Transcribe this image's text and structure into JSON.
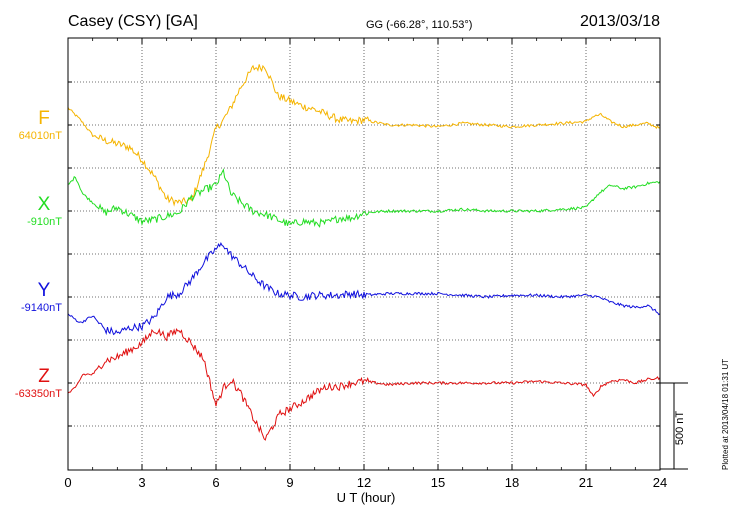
{
  "header": {
    "title": "Casey (CSY)  [GA]",
    "coords": "GG (-66.28°, 110.53°)",
    "date": "2013/03/18",
    "plotted": "Plotted at 2013/04/18 01:31  UT"
  },
  "chart_data": {
    "type": "line",
    "xlabel": "U T (hour)",
    "xlim": [
      0,
      24
    ],
    "x_ticks": [
      "0",
      "3",
      "6",
      "9",
      "12",
      "15",
      "18",
      "21",
      "24"
    ],
    "grid": true,
    "scale_bar": {
      "label": "500 nT",
      "value_nT": 500
    },
    "units_per_panel_nT": 500,
    "series": [
      {
        "name": "F",
        "baseline_label": "64010nT",
        "baseline_nT": 64010,
        "color": "#f5b400",
        "x": [
          0,
          0.5,
          1,
          1.5,
          2,
          2.5,
          3,
          3.5,
          4,
          4.5,
          5,
          5.5,
          5.8,
          6,
          6.3,
          6.6,
          7,
          7.5,
          8,
          8.5,
          9,
          9.5,
          10,
          10.5,
          11,
          11.5,
          12,
          13,
          14,
          15,
          16,
          17,
          18,
          19,
          20,
          21,
          21.3,
          21.6,
          22,
          22.5,
          23,
          23.5,
          24
        ],
        "y": [
          100,
          30,
          -60,
          -90,
          -110,
          -130,
          -200,
          -300,
          -430,
          -450,
          -440,
          -250,
          -120,
          -20,
          30,
          100,
          220,
          330,
          340,
          170,
          140,
          110,
          90,
          60,
          30,
          20,
          30,
          0,
          0,
          -10,
          10,
          0,
          -10,
          0,
          10,
          20,
          50,
          60,
          20,
          -10,
          0,
          10,
          -20
        ]
      },
      {
        "name": "X",
        "baseline_label": "-910nT",
        "baseline_nT": -910,
        "color": "#22dd22",
        "x": [
          0,
          0.3,
          0.6,
          1,
          1.5,
          2,
          2.5,
          3,
          3.5,
          4,
          4.5,
          5,
          5.5,
          6,
          6.3,
          6.6,
          7,
          7.5,
          8,
          8.5,
          9,
          9.5,
          10,
          10.5,
          11,
          11.5,
          12,
          13,
          14,
          15,
          16,
          17,
          18,
          19,
          20,
          21,
          21.5,
          22,
          22.5,
          23,
          23.5,
          24
        ],
        "y": [
          150,
          200,
          100,
          50,
          -10,
          20,
          -20,
          -60,
          -50,
          -30,
          -10,
          80,
          120,
          150,
          230,
          100,
          50,
          0,
          -20,
          -50,
          -80,
          -60,
          -70,
          -70,
          -40,
          -40,
          -10,
          0,
          0,
          0,
          10,
          0,
          0,
          0,
          10,
          20,
          100,
          150,
          130,
          140,
          160,
          170
        ]
      },
      {
        "name": "Y",
        "baseline_label": "-9140nT",
        "baseline_nT": -9140,
        "color": "#1010dd",
        "x": [
          0,
          0.5,
          1,
          1.5,
          2,
          2.5,
          3,
          3.5,
          4,
          4.5,
          5,
          5.5,
          6,
          6.3,
          6.5,
          7,
          7.5,
          8,
          8.5,
          9,
          9.5,
          10,
          10.5,
          11,
          11.5,
          12,
          13,
          14,
          15,
          16,
          17,
          18,
          19,
          20,
          21,
          21.5,
          22,
          22.5,
          23,
          23.5,
          24
        ],
        "y": [
          -100,
          -150,
          -110,
          -190,
          -210,
          -180,
          -170,
          -120,
          0,
          20,
          100,
          200,
          280,
          310,
          260,
          190,
          120,
          60,
          20,
          10,
          0,
          10,
          10,
          10,
          20,
          10,
          20,
          20,
          20,
          10,
          0,
          10,
          10,
          0,
          10,
          0,
          -30,
          -50,
          -60,
          -50,
          -100
        ]
      },
      {
        "name": "Z",
        "baseline_label": "-63350nT",
        "baseline_nT": -63350,
        "color": "#e01010",
        "x": [
          0,
          0.3,
          0.6,
          1,
          1.5,
          2,
          2.5,
          3,
          3.5,
          4,
          4.5,
          5,
          5.5,
          6,
          6.3,
          6.6,
          7,
          7.5,
          8,
          8.3,
          8.6,
          9,
          9.5,
          10,
          10.5,
          11,
          11.5,
          12,
          13,
          14,
          15,
          16,
          17,
          18,
          19,
          20,
          21,
          21.3,
          21.6,
          22,
          22.5,
          23,
          23.5,
          24
        ],
        "y": [
          -60,
          -30,
          50,
          50,
          130,
          150,
          190,
          230,
          310,
          270,
          310,
          230,
          140,
          -130,
          -30,
          20,
          -60,
          -200,
          -330,
          -250,
          -180,
          -150,
          -110,
          -60,
          -20,
          -20,
          0,
          10,
          -10,
          0,
          0,
          0,
          0,
          0,
          10,
          0,
          -10,
          -80,
          -20,
          10,
          20,
          0,
          20,
          30
        ]
      }
    ]
  }
}
